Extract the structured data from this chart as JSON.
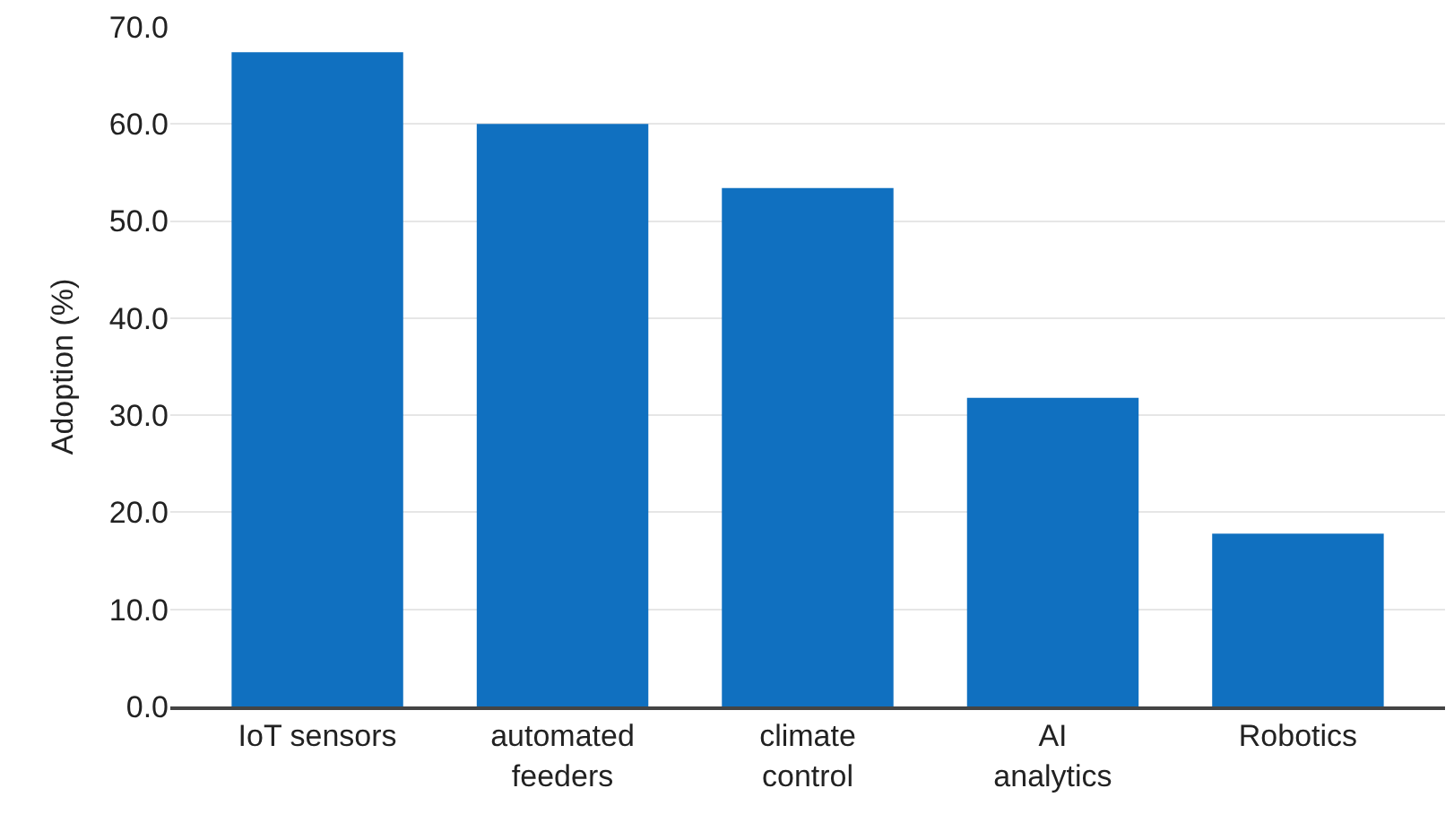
{
  "chart_data": {
    "type": "bar",
    "ylabel": "Adoption (%)",
    "categories": [
      "IoT sensors",
      "automated\nfeeders",
      "climate\ncontrol",
      "AI\nanalytics",
      "Robotics"
    ],
    "values": [
      67.4,
      60.0,
      53.4,
      31.8,
      17.8
    ],
    "color": "#1070c0",
    "ylim": [
      0,
      70
    ],
    "yticks": [
      {
        "value": 0,
        "label": "0.0"
      },
      {
        "value": 10,
        "label": "10.0"
      },
      {
        "value": 20,
        "label": "20.0"
      },
      {
        "value": 30,
        "label": "30.0"
      },
      {
        "value": 40,
        "label": "40.0"
      },
      {
        "value": 50,
        "label": "50.0"
      },
      {
        "value": 60,
        "label": "60.0"
      },
      {
        "value": 70,
        "label": "70.0"
      }
    ],
    "grid": "y"
  }
}
